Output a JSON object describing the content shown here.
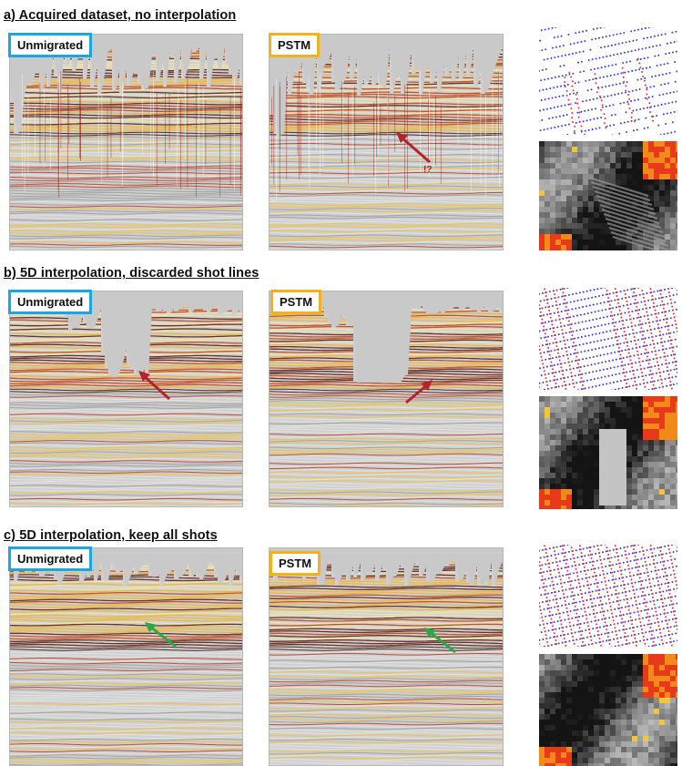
{
  "figure": {
    "sections": [
      {
        "id": "a",
        "title": "a) Acquired dataset, no interpolation",
        "left_label": "Unmigrated",
        "right_label": "PSTM",
        "note": "!?",
        "arrow_color": "#b3232b"
      },
      {
        "id": "b",
        "title": "b) 5D interpolation, discarded shot lines",
        "left_label": "Unmigrated",
        "right_label": "PSTM",
        "arrow_color": "#b3232b"
      },
      {
        "id": "c",
        "title": "c) 5D interpolation, keep all shots",
        "left_label": "Unmigrated",
        "right_label": "PSTM",
        "arrow_color": "#27a84a"
      }
    ],
    "colors": {
      "unmigrated_border": "#1aa7e0",
      "pstm_border": "#f2b21c",
      "geometry_blue": "#3a3fe0",
      "geometry_red": "#e03a3a"
    }
  }
}
